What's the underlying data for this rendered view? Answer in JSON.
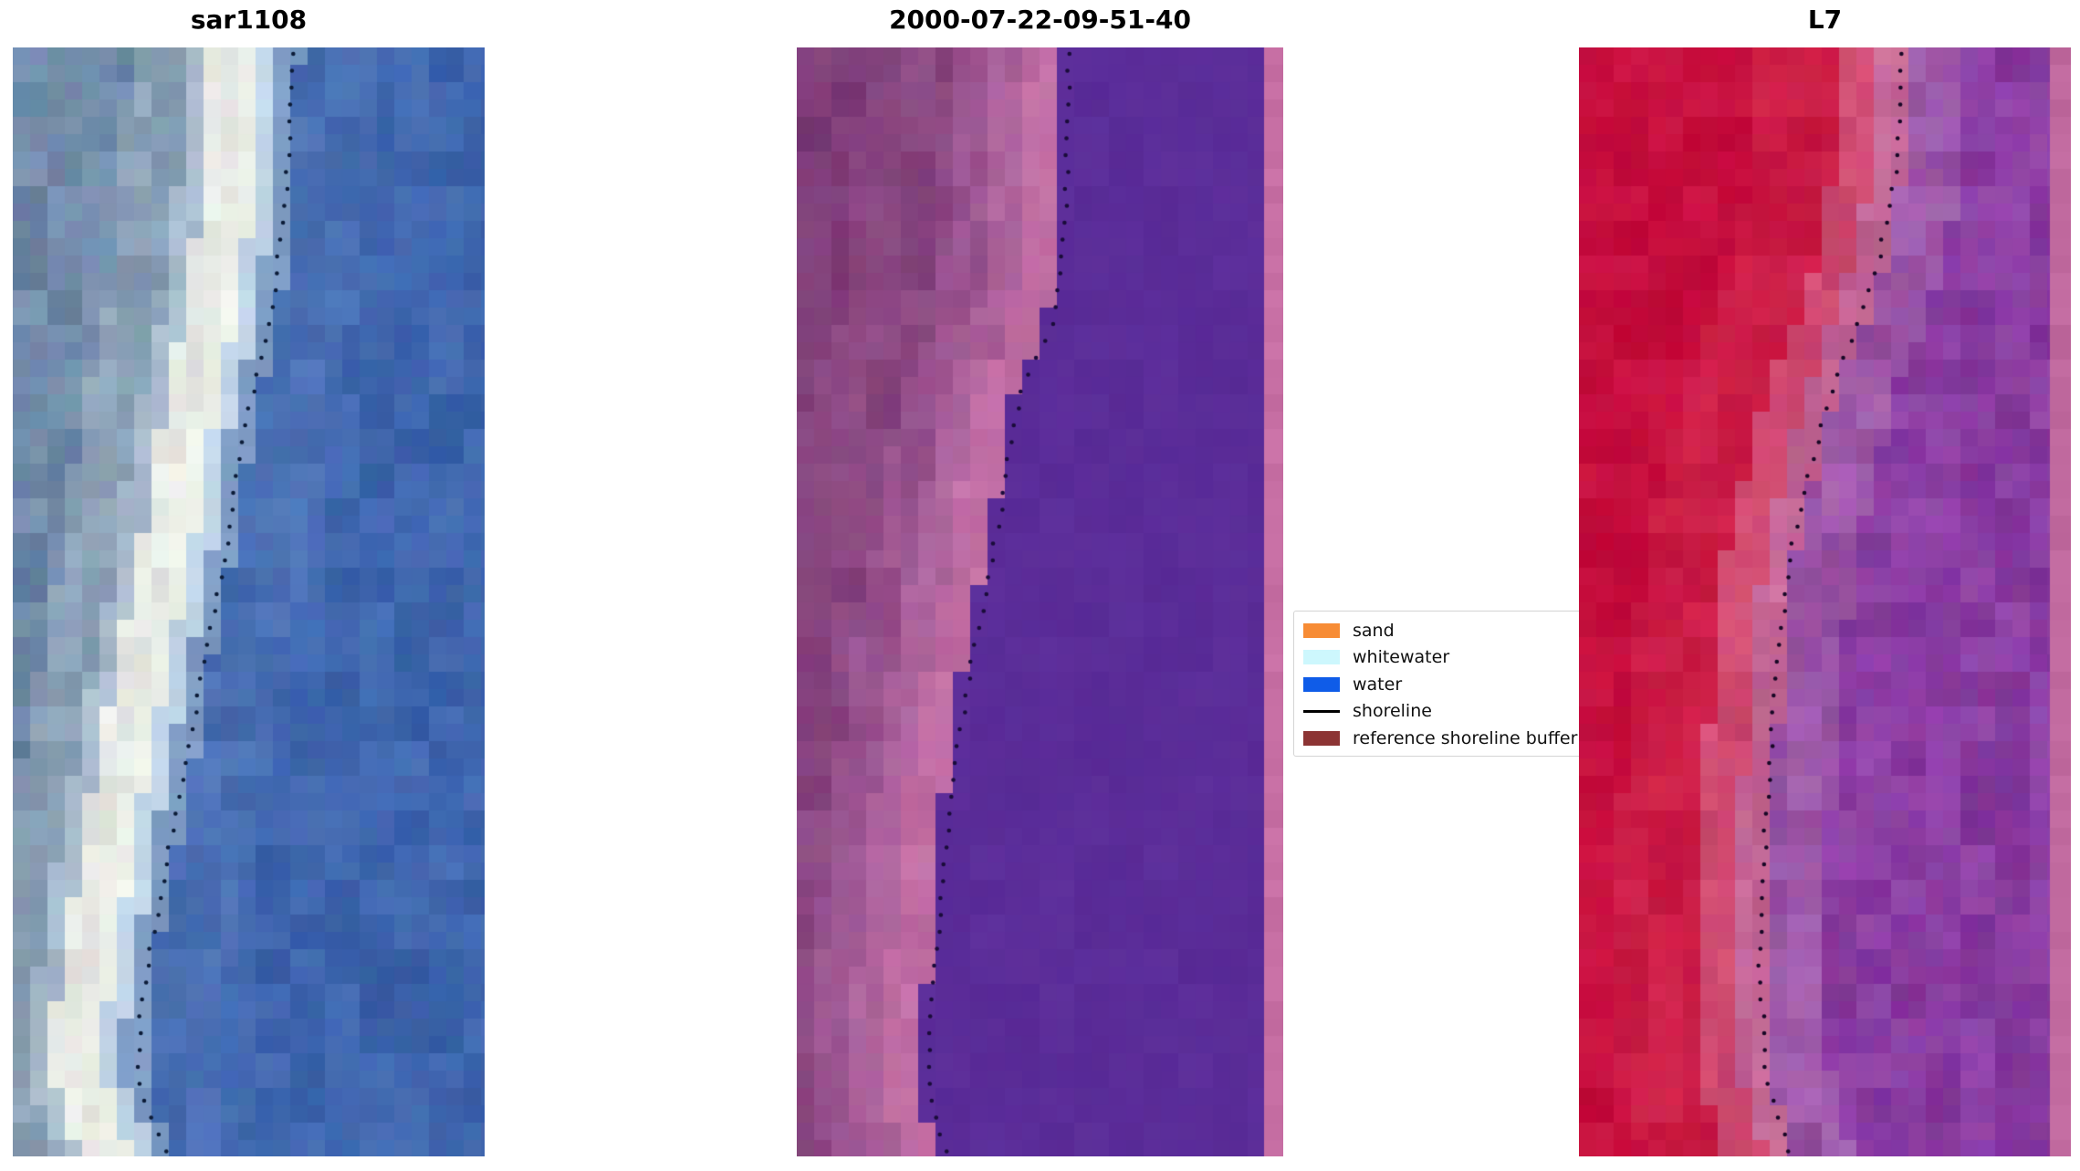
{
  "chart_data": {
    "type": "image-panels",
    "title": "",
    "panels": [
      {
        "title": "sar1108",
        "kind": "satellite-sar-rgb",
        "seed": 11,
        "cell": 19,
        "dot_color": "#0c1c38",
        "dot_spacing": 18.5,
        "shoreline": [
          [
            0,
            0.592
          ],
          [
            0.12,
            0.582
          ],
          [
            0.23,
            0.553
          ],
          [
            0.3,
            0.515
          ],
          [
            0.37,
            0.48
          ],
          [
            0.45,
            0.453
          ],
          [
            0.53,
            0.418
          ],
          [
            0.615,
            0.379
          ],
          [
            0.7,
            0.34
          ],
          [
            0.78,
            0.306
          ],
          [
            0.86,
            0.273
          ],
          [
            0.93,
            0.262
          ],
          [
            1,
            0.331
          ]
        ],
        "bands": [
          {
            "max": -300,
            "color": "#6f85a3",
            "amp": 13
          },
          {
            "max": -180,
            "color": "#708aa9",
            "amp": 15
          },
          {
            "max": -120,
            "color": "#8aa0b6",
            "amp": 12
          },
          {
            "max": -95,
            "color": "#a9bccd",
            "amp": 10
          },
          {
            "max": -60,
            "color": "#e7e9e4",
            "amp": 10
          },
          {
            "max": -38,
            "color": "#eef2ea",
            "amp": 7
          },
          {
            "max": -16,
            "color": "#c2d6e8",
            "amp": 8
          },
          {
            "max": 8,
            "color": "#7e9cc4",
            "amp": 8
          },
          {
            "max": 90,
            "color": "#4a70b4",
            "amp": 10
          },
          {
            "max": 99999,
            "color": "#3f66ae",
            "amp": 10
          }
        ]
      },
      {
        "title": "2000-07-22-09-51-40",
        "kind": "classified-image",
        "seed": 23,
        "cell": 19,
        "dot_color": "#1a0c3a",
        "dot_spacing": 18.5,
        "shoreline": [
          [
            0,
            0.561
          ],
          [
            0.163,
            0.553
          ],
          [
            0.245,
            0.529
          ],
          [
            0.311,
            0.463
          ],
          [
            0.344,
            0.445
          ],
          [
            0.41,
            0.422
          ],
          [
            0.492,
            0.388
          ],
          [
            0.574,
            0.351
          ],
          [
            0.657,
            0.323
          ],
          [
            0.739,
            0.304
          ],
          [
            0.821,
            0.285
          ],
          [
            0.904,
            0.272
          ],
          [
            0.961,
            0.28
          ],
          [
            1,
            0.313
          ]
        ],
        "bands": [
          {
            "max": -230,
            "color": "#7f3e79",
            "amp": 9
          },
          {
            "max": -130,
            "color": "#8a4781",
            "amp": 9
          },
          {
            "max": -85,
            "color": "#9a5490",
            "amp": 9
          },
          {
            "max": -48,
            "color": "#ad639d",
            "amp": 8
          },
          {
            "max": -8,
            "color": "#c06da4",
            "amp": 8
          },
          {
            "max": 99999,
            "color": "#5b2d99",
            "amp": 3
          }
        ],
        "edge": {
          "width": 21,
          "color": "#c76fa4"
        }
      },
      {
        "title": "L7",
        "kind": "landsat7-false-color",
        "seed": 37,
        "cell": 19,
        "dot_color": "#180826",
        "dot_spacing": 18.5,
        "shoreline": [
          [
            0,
            0.659
          ],
          [
            0.12,
            0.642
          ],
          [
            0.2,
            0.606
          ],
          [
            0.327,
            0.501
          ],
          [
            0.451,
            0.432
          ],
          [
            0.574,
            0.399
          ],
          [
            0.698,
            0.38
          ],
          [
            0.821,
            0.367
          ],
          [
            0.928,
            0.38
          ],
          [
            1,
            0.43
          ]
        ],
        "bands": [
          {
            "max": -160,
            "color": "#c60e3e",
            "amp": 8
          },
          {
            "max": -70,
            "color": "#cb1c46",
            "amp": 9
          },
          {
            "max": -28,
            "color": "#d04b72",
            "amp": 10
          },
          {
            "max": 6,
            "color": "#c46897",
            "amp": 12
          },
          {
            "max": 70,
            "color": "#9d58a9",
            "amp": 13
          },
          {
            "max": 99999,
            "color": "#8a3da2",
            "amp": 12
          }
        ],
        "edge": {
          "width": 23,
          "color": "#c0699e"
        }
      }
    ],
    "legend": {
      "items": [
        {
          "label": "sand",
          "color": "#f78c35",
          "swatch": "patch"
        },
        {
          "label": "whitewater",
          "color": "#cdf7fd",
          "swatch": "patch"
        },
        {
          "label": "water",
          "color": "#0f5ce8",
          "swatch": "patch"
        },
        {
          "label": "shoreline",
          "color": "#000000",
          "swatch": "line"
        },
        {
          "label": "reference shoreline buffer",
          "color": "#8c3434",
          "swatch": "patch"
        }
      ]
    }
  }
}
